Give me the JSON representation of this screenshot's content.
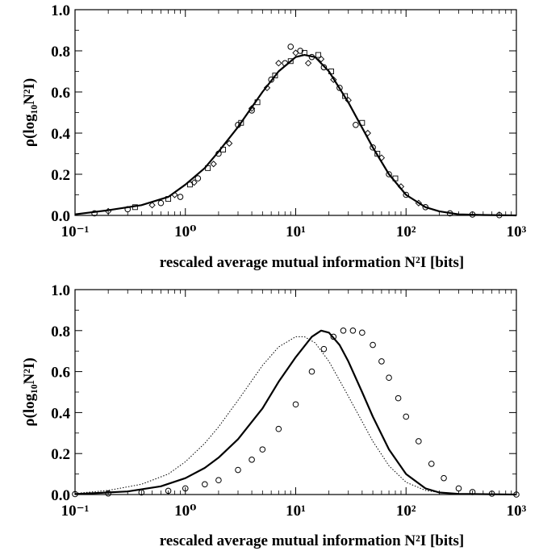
{
  "chart_data": [
    {
      "type": "scatter",
      "xlabel": "rescaled average mutual information N²I [bits]",
      "ylabel": "ρ(log₁₀N²I)",
      "xscale": "log",
      "xlim": [
        0.1,
        1000
      ],
      "ylim": [
        0.0,
        1.0
      ],
      "xticks": [
        "10⁻¹",
        "10⁰",
        "10¹",
        "10²",
        "10³"
      ],
      "yticks": [
        "0.0",
        "0.2",
        "0.4",
        "0.6",
        "0.8",
        "1.0"
      ],
      "grid": false,
      "series": [
        {
          "style": "solid-line",
          "x": [
            0.1,
            0.2,
            0.4,
            0.7,
            1,
            1.5,
            2,
            3,
            5,
            7,
            10,
            12,
            15,
            20,
            30,
            50,
            70,
            100,
            150,
            200,
            300,
            500,
            1000
          ],
          "y": [
            0.005,
            0.025,
            0.05,
            0.09,
            0.15,
            0.23,
            0.31,
            0.43,
            0.6,
            0.7,
            0.77,
            0.78,
            0.77,
            0.7,
            0.55,
            0.33,
            0.2,
            0.1,
            0.04,
            0.02,
            0.005,
            0.002,
            0.0
          ]
        },
        {
          "style": "circles",
          "x": [
            0.15,
            0.3,
            0.6,
            0.9,
            1.3,
            2,
            3,
            4,
            6,
            8,
            9,
            11,
            14,
            18,
            25,
            35,
            50,
            70,
            100,
            150,
            250,
            400,
            700
          ],
          "y": [
            0.01,
            0.03,
            0.06,
            0.09,
            0.18,
            0.3,
            0.44,
            0.51,
            0.66,
            0.74,
            0.82,
            0.8,
            0.77,
            0.72,
            0.62,
            0.44,
            0.33,
            0.2,
            0.1,
            0.04,
            0.01,
            0.004,
            0.001
          ]
        },
        {
          "style": "diamonds",
          "x": [
            0.2,
            0.5,
            0.8,
            1.2,
            1.8,
            2.5,
            4,
            5.5,
            7,
            10,
            13,
            17,
            22,
            30,
            45,
            60,
            90,
            130
          ],
          "y": [
            0.02,
            0.05,
            0.1,
            0.16,
            0.25,
            0.35,
            0.52,
            0.62,
            0.74,
            0.79,
            0.74,
            0.76,
            0.66,
            0.56,
            0.4,
            0.28,
            0.14,
            0.06
          ]
        },
        {
          "style": "squares",
          "x": [
            0.35,
            0.7,
            1.1,
            1.6,
            2.2,
            3.2,
            4.5,
            6.5,
            9,
            12,
            16,
            21,
            28,
            40,
            55,
            80
          ],
          "y": [
            0.04,
            0.08,
            0.15,
            0.23,
            0.32,
            0.45,
            0.55,
            0.68,
            0.75,
            0.79,
            0.78,
            0.7,
            0.58,
            0.45,
            0.3,
            0.18
          ]
        }
      ]
    },
    {
      "type": "line",
      "xlabel": "rescaled average mutual information N²I [bits]",
      "ylabel": "ρ(log₁₀N²I)",
      "xscale": "log",
      "xlim": [
        0.1,
        1000
      ],
      "ylim": [
        0.0,
        1.0
      ],
      "xticks": [
        "10⁻¹",
        "10⁰",
        "10¹",
        "10²",
        "10³"
      ],
      "yticks": [
        "0.0",
        "0.2",
        "0.4",
        "0.6",
        "0.8",
        "1.0"
      ],
      "grid": false,
      "series": [
        {
          "style": "dotted-line",
          "x": [
            0.1,
            0.2,
            0.4,
            0.7,
            1,
            1.5,
            2,
            3,
            5,
            7,
            10,
            12,
            15,
            20,
            30,
            50,
            70,
            100,
            150,
            200,
            300,
            1000
          ],
          "y": [
            0.005,
            0.02,
            0.05,
            0.1,
            0.16,
            0.25,
            0.33,
            0.46,
            0.63,
            0.72,
            0.77,
            0.77,
            0.74,
            0.65,
            0.48,
            0.26,
            0.14,
            0.06,
            0.02,
            0.01,
            0.003,
            0.0
          ]
        },
        {
          "style": "solid-line",
          "x": [
            0.1,
            0.3,
            0.6,
            1,
            1.5,
            2,
            3,
            5,
            7,
            10,
            14,
            17,
            20,
            25,
            30,
            40,
            50,
            70,
            100,
            150,
            200,
            300,
            1000
          ],
          "y": [
            0.002,
            0.015,
            0.04,
            0.08,
            0.13,
            0.18,
            0.27,
            0.42,
            0.55,
            0.67,
            0.77,
            0.8,
            0.79,
            0.73,
            0.65,
            0.5,
            0.38,
            0.22,
            0.1,
            0.03,
            0.01,
            0.003,
            0.0
          ]
        },
        {
          "style": "circles",
          "x": [
            0.1,
            0.2,
            0.4,
            0.7,
            1,
            1.5,
            2,
            3,
            4,
            5,
            7,
            10,
            14,
            18,
            22,
            27,
            33,
            40,
            50,
            60,
            70,
            85,
            100,
            130,
            170,
            220,
            300,
            400,
            600,
            1000
          ],
          "y": [
            0.002,
            0.005,
            0.01,
            0.018,
            0.03,
            0.05,
            0.07,
            0.12,
            0.17,
            0.22,
            0.32,
            0.44,
            0.6,
            0.71,
            0.77,
            0.8,
            0.8,
            0.79,
            0.73,
            0.65,
            0.57,
            0.47,
            0.38,
            0.26,
            0.15,
            0.08,
            0.03,
            0.012,
            0.004,
            0.0
          ]
        }
      ]
    }
  ]
}
